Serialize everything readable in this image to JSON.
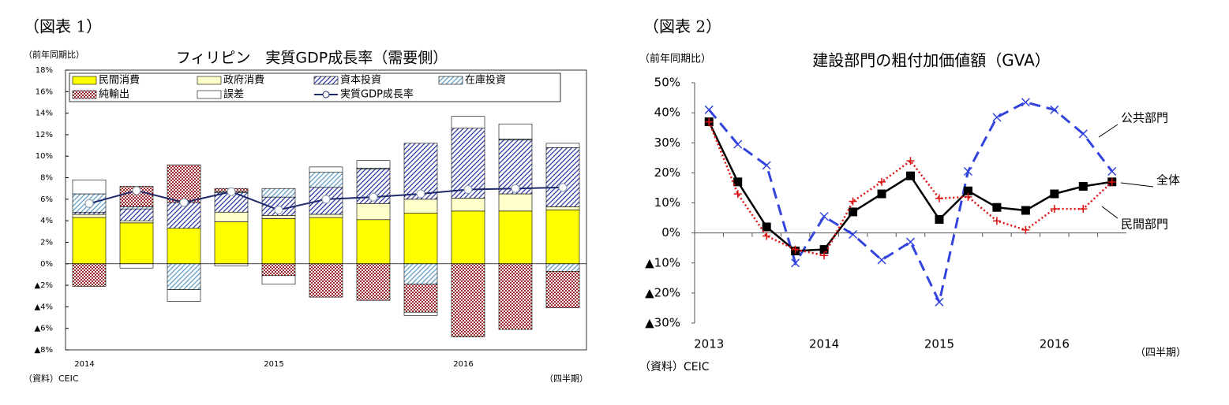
{
  "chart_data": [
    {
      "type": "bar",
      "stacked": true,
      "figure_label": "（図表 1）",
      "title": "フィリピン　実質GDP成長率（需要側）",
      "y_unit_label": "（前年同期比）",
      "source_label": "（資料）CEIC",
      "x_unit_label": "（四半期）",
      "categories": [
        "2014",
        null,
        null,
        null,
        "2015",
        null,
        null,
        null,
        "2016",
        null,
        null
      ],
      "series": [
        {
          "name": "民間消費",
          "color": "#ffff00",
          "pattern": "solid",
          "values": [
            4.3,
            3.8,
            3.3,
            3.9,
            4.2,
            4.3,
            4.1,
            4.7,
            4.9,
            4.9,
            5.0
          ]
        },
        {
          "name": "政府消費",
          "color": "#ffffcc",
          "pattern": "solid",
          "values": [
            0.3,
            0.2,
            0,
            0.9,
            0.3,
            0.3,
            1.5,
            1.3,
            1.2,
            1.6,
            0.3
          ]
        },
        {
          "name": "資本投資",
          "color": "#2e3a9e",
          "pattern": "hatch",
          "values": [
            0.2,
            1.1,
            2.4,
            1.8,
            1.7,
            2.5,
            3.2,
            5.2,
            6.5,
            5.0,
            5.5
          ]
        },
        {
          "name": "在庫投資",
          "color": "#5f9fc4",
          "pattern": "hatch",
          "values": [
            1.7,
            0.2,
            -2.4,
            0.1,
            0.8,
            1.4,
            0.1,
            -1.9,
            0,
            0.1,
            -0.7
          ]
        },
        {
          "name": "純輸出",
          "color": "#9b2b2b",
          "pattern": "checker",
          "values": [
            -2.1,
            1.9,
            3.5,
            0.3,
            -1.1,
            -3.1,
            -3.4,
            -2.6,
            -6.8,
            -6.1,
            -3.4
          ]
        },
        {
          "name": "誤差",
          "color": "#ffffff",
          "pattern": "solid",
          "values": [
            1.3,
            -0.4,
            -1.1,
            -0.2,
            -0.8,
            0.5,
            0.7,
            -0.3,
            1.1,
            1.4,
            0.4
          ]
        },
        {
          "name": "実質GDP成長率",
          "type": "line",
          "color": "#1f2a6b",
          "values": [
            5.6,
            6.8,
            5.7,
            6.7,
            5.0,
            6.0,
            6.2,
            6.5,
            6.9,
            7.0,
            7.1
          ]
        }
      ],
      "ylim": [
        -8,
        18
      ],
      "yticks": [
        {
          "value": 18,
          "label": "18%"
        },
        {
          "value": 16,
          "label": "16%"
        },
        {
          "value": 14,
          "label": "14%"
        },
        {
          "value": 12,
          "label": "12%"
        },
        {
          "value": 10,
          "label": "10%"
        },
        {
          "value": 8,
          "label": "8%"
        },
        {
          "value": 6,
          "label": "6%"
        },
        {
          "value": 4,
          "label": "4%"
        },
        {
          "value": 2,
          "label": "2%"
        },
        {
          "value": 0,
          "label": "0%"
        },
        {
          "value": -2,
          "label": "▲2%"
        },
        {
          "value": -4,
          "label": "▲4%"
        },
        {
          "value": -6,
          "label": "▲6%"
        },
        {
          "value": -8,
          "label": "▲8%"
        }
      ],
      "legend": "top"
    },
    {
      "type": "line",
      "figure_label": "（図表 2）",
      "title": "建設部門の粗付加価値額（GVA）",
      "y_unit_label": "（前年同期比）",
      "source_label": "（資料）CEIC",
      "x_unit_label": "（四半期）",
      "categories": [
        "2013",
        null,
        null,
        null,
        "2014",
        null,
        null,
        null,
        "2015",
        null,
        null,
        null,
        "2016",
        null,
        null
      ],
      "series": [
        {
          "name": "公共部門",
          "color": "#3344dd",
          "dash": "dashed",
          "marker": "x",
          "values": [
            41,
            29.5,
            22.5,
            -10,
            5.5,
            -0.5,
            -9,
            -3,
            -23,
            20.5,
            38.5,
            43.5,
            41,
            33,
            20.5
          ]
        },
        {
          "name": "全体",
          "color": "#000000",
          "dash": "solid",
          "marker": "square",
          "values": [
            37,
            17,
            2,
            -6,
            -5.5,
            7,
            13,
            19,
            4.5,
            14,
            8.5,
            7.5,
            13,
            15.5,
            17
          ]
        },
        {
          "name": "民間部門",
          "color": "#dd1111",
          "dash": "dotted",
          "marker": "plus",
          "values": [
            37,
            13,
            -1,
            -5.5,
            -7.5,
            10.5,
            17,
            24,
            11.5,
            12,
            4,
            1,
            8,
            8,
            17
          ]
        }
      ],
      "ylim": [
        -30,
        50
      ],
      "yticks": [
        {
          "value": 50,
          "label": "50%"
        },
        {
          "value": 40,
          "label": "40%"
        },
        {
          "value": 30,
          "label": "30%"
        },
        {
          "value": 20,
          "label": "20%"
        },
        {
          "value": 10,
          "label": "10%"
        },
        {
          "value": 0,
          "label": "0%"
        },
        {
          "value": -10,
          "label": "▲10%"
        },
        {
          "value": -20,
          "label": "▲20%"
        },
        {
          "value": -30,
          "label": "▲30%"
        }
      ]
    }
  ]
}
